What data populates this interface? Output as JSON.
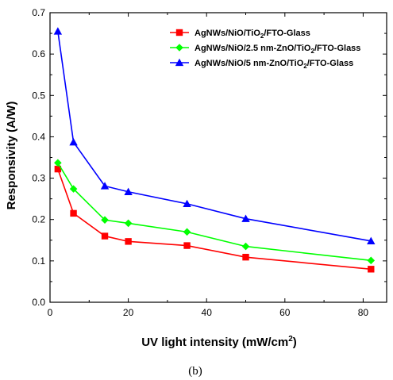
{
  "chart_data": {
    "type": "line",
    "xlabel": "UV light intensity (mW/cm",
    "xlabel_sup": "2",
    "xlabel_end": ")",
    "ylabel": "Responsivity (A/W)",
    "xlim": [
      0,
      86
    ],
    "ylim": [
      0,
      0.7
    ],
    "xticks": [
      0,
      20,
      40,
      60,
      80
    ],
    "yticks": [
      0.0,
      0.1,
      0.2,
      0.3,
      0.4,
      0.5,
      0.6,
      0.7
    ],
    "xtick_labels": [
      "0",
      "20",
      "40",
      "60",
      "80"
    ],
    "ytick_labels": [
      "0.0",
      "0.1",
      "0.2",
      "0.3",
      "0.4",
      "0.5",
      "0.6",
      "0.7"
    ],
    "x": [
      2,
      6,
      14,
      20,
      35,
      50,
      82
    ],
    "grid": false,
    "legend_position": "top-right",
    "series": [
      {
        "name": "AgNWs/NiO/TiO2/FTO-Glass",
        "label_parts": [
          "AgNWs/NiO/TiO",
          "2",
          "/FTO-Glass"
        ],
        "color": "#ff0000",
        "marker": "square",
        "values": [
          0.322,
          0.215,
          0.16,
          0.147,
          0.137,
          0.109,
          0.08
        ]
      },
      {
        "name": "AgNWs/NiO/2.5 nm-ZnO/TiO2/FTO-Glass",
        "label_parts": [
          "AgNWs/NiO/2.5 nm-ZnO/TiO",
          "2",
          "/FTO-Glass"
        ],
        "color": "#00ff00",
        "marker": "diamond",
        "values": [
          0.337,
          0.274,
          0.199,
          0.191,
          0.17,
          0.135,
          0.101
        ]
      },
      {
        "name": "AgNWs/NiO/5 nm-ZnO/TiO2/FTO-Glass",
        "label_parts": [
          "AgNWs/NiO/5 nm-ZnO/TiO",
          "2",
          "/FTO-Glass"
        ],
        "color": "#0000ff",
        "marker": "triangle",
        "values": [
          0.655,
          0.387,
          0.281,
          0.267,
          0.238,
          0.202,
          0.148
        ]
      }
    ]
  },
  "caption": "(b)"
}
